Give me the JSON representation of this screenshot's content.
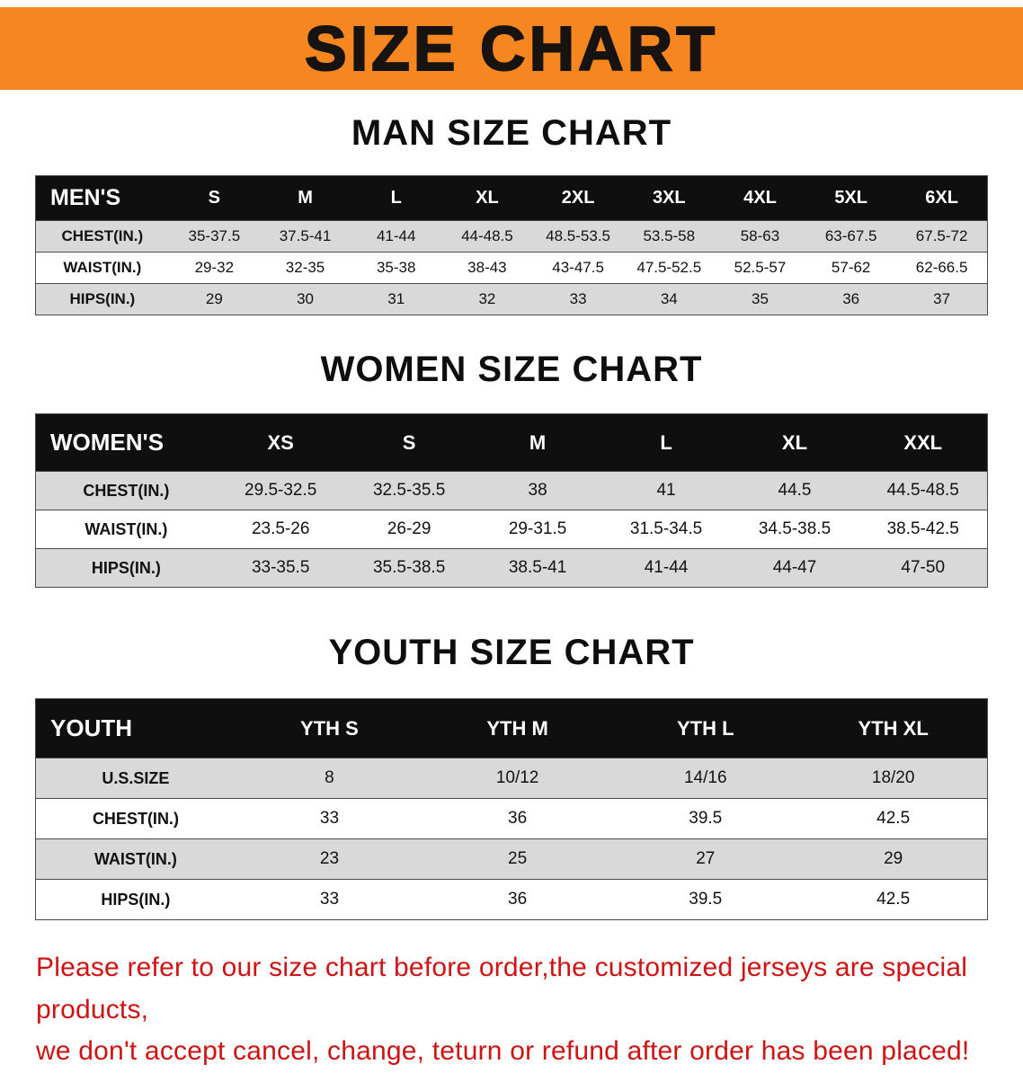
{
  "banner": {
    "title": "SIZE CHART"
  },
  "sections": [
    {
      "heading": "MAN SIZE CHART",
      "table": {
        "header": [
          "MEN'S",
          "S",
          "M",
          "L",
          "XL",
          "2XL",
          "3XL",
          "4XL",
          "5XL",
          "6XL"
        ],
        "rows": [
          [
            "CHEST(IN.)",
            "35-37.5",
            "37.5-41",
            "41-44",
            "44-48.5",
            "48.5-53.5",
            "53.5-58",
            "58-63",
            "63-67.5",
            "67.5-72"
          ],
          [
            "WAIST(IN.)",
            "29-32",
            "32-35",
            "35-38",
            "38-43",
            "43-47.5",
            "47.5-52.5",
            "52.5-57",
            "57-62",
            "62-66.5"
          ],
          [
            "HIPS(IN.)",
            "29",
            "30",
            "31",
            "32",
            "33",
            "34",
            "35",
            "36",
            "37"
          ]
        ]
      }
    },
    {
      "heading": "WOMEN SIZE CHART",
      "table": {
        "header": [
          "WOMEN'S",
          "XS",
          "S",
          "M",
          "L",
          "XL",
          "XXL"
        ],
        "rows": [
          [
            "CHEST(IN.)",
            "29.5-32.5",
            "32.5-35.5",
            "38",
            "41",
            "44.5",
            "44.5-48.5"
          ],
          [
            "WAIST(IN.)",
            "23.5-26",
            "26-29",
            "29-31.5",
            "31.5-34.5",
            "34.5-38.5",
            "38.5-42.5"
          ],
          [
            "HIPS(IN.)",
            "33-35.5",
            "35.5-38.5",
            "38.5-41",
            "41-44",
            "44-47",
            "47-50"
          ]
        ]
      }
    },
    {
      "heading": "YOUTH SIZE CHART",
      "table": {
        "header": [
          "YOUTH",
          "YTH S",
          "YTH M",
          "YTH L",
          "YTH XL"
        ],
        "rows": [
          [
            "U.S.SIZE",
            "8",
            "10/12",
            "14/16",
            "18/20"
          ],
          [
            "CHEST(IN.)",
            "33",
            "36",
            "39.5",
            "42.5"
          ],
          [
            "WAIST(IN.)",
            "23",
            "25",
            "27",
            "29"
          ],
          [
            "HIPS(IN.)",
            "33",
            "36",
            "39.5",
            "42.5"
          ]
        ]
      }
    }
  ],
  "footer": {
    "line1": "Please refer to our size chart before order,the customized jerseys are special products,",
    "line2": "we don't accept cancel, change, teturn or refund after order has been placed!"
  },
  "colors": {
    "banner_bg": "#f6861f",
    "table_header_bg": "#0f0f0f",
    "row_alt_bg": "#d9d9d9",
    "footer_text": "#cf1312"
  }
}
